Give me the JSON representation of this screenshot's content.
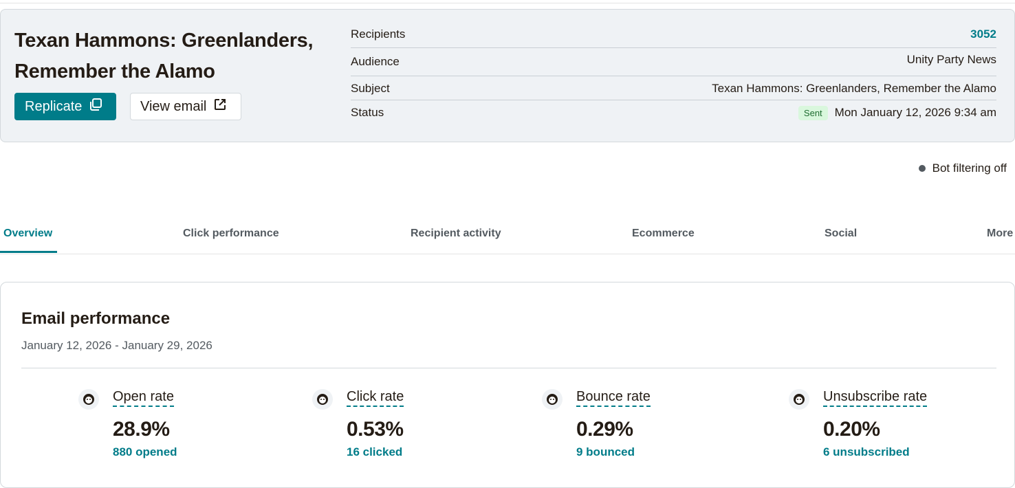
{
  "campaign": {
    "title": "Texan Hammons: Greenlanders, Remember the Alamo",
    "replicate_label": "Replicate",
    "view_email_label": "View email"
  },
  "meta": {
    "recipients_label": "Recipients",
    "recipients_value": "3052",
    "audience_label": "Audience",
    "audience_value": "Unity Party News",
    "subject_label": "Subject",
    "subject_value": "Texan Hammons: Greenlanders, Remember the Alamo",
    "status_label": "Status",
    "status_badge": "Sent",
    "status_value": "Mon January 12, 2026 9:34 am"
  },
  "bot_filter": {
    "label": "Bot filtering off"
  },
  "tabs": [
    {
      "label": "Overview",
      "active": true
    },
    {
      "label": "Click performance"
    },
    {
      "label": "Recipient activity"
    },
    {
      "label": "Ecommerce"
    },
    {
      "label": "Social"
    },
    {
      "label": "More"
    }
  ],
  "performance": {
    "title": "Email performance",
    "date_range": "January 12, 2026 - January 29, 2026",
    "metrics": [
      {
        "label": "Open rate",
        "value": "28.9%",
        "sub": "880 opened",
        "icon": "mailchimp-freddie-icon"
      },
      {
        "label": "Click rate",
        "value": "0.53%",
        "sub": "16 clicked",
        "icon": "mailchimp-freddie-icon"
      },
      {
        "label": "Bounce rate",
        "value": "0.29%",
        "sub": "9 bounced",
        "icon": "mailchimp-freddie-icon"
      },
      {
        "label": "Unsubscribe rate",
        "value": "0.20%",
        "sub": "6 unsubscribed",
        "icon": "mailchimp-freddie-icon"
      }
    ]
  },
  "colors": {
    "accent": "#007c89",
    "card_bg": "#eff2f5",
    "sent_badge_bg": "#d9f7dd"
  }
}
